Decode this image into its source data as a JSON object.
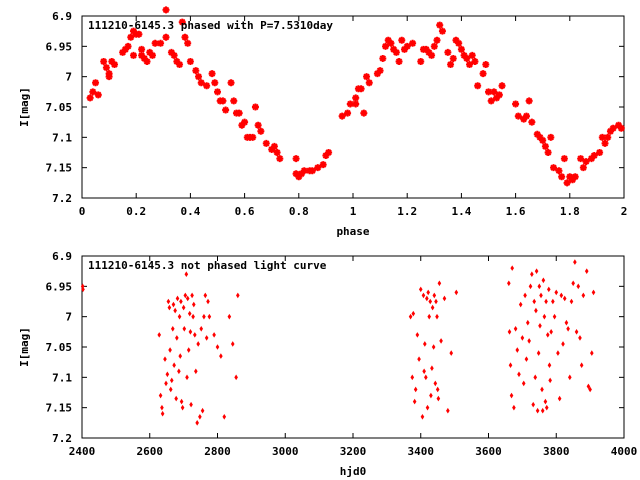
{
  "colors": {
    "marker": "#ff0000",
    "axis": "#000000",
    "background": "#ffffff"
  },
  "chart_data": [
    {
      "type": "scatter",
      "title": "111210-6145.3 phased with P=7.5310day",
      "xlabel": "phase",
      "ylabel": "I[mag]",
      "xlim": [
        0,
        2
      ],
      "ylim": [
        7.2,
        6.9
      ],
      "x_ticks": [
        "0",
        "0.2",
        "0.4",
        "0.6",
        "0.8",
        "1",
        "1.2",
        "1.4",
        "1.6",
        "1.8",
        "2"
      ],
      "y_ticks": [
        "6.9",
        "6.95",
        "7",
        "7.05",
        "7.1",
        "7.15",
        "7.2"
      ],
      "grid": false,
      "marker": "star",
      "points": [
        [
          0.03,
          7.035
        ],
        [
          0.04,
          7.025
        ],
        [
          0.05,
          7.01
        ],
        [
          0.06,
          7.03
        ],
        [
          0.08,
          6.975
        ],
        [
          0.09,
          6.985
        ],
        [
          0.1,
          6.995
        ],
        [
          0.1,
          7.0
        ],
        [
          0.11,
          6.975
        ],
        [
          0.12,
          6.98
        ],
        [
          0.15,
          6.96
        ],
        [
          0.16,
          6.955
        ],
        [
          0.17,
          6.95
        ],
        [
          0.18,
          6.935
        ],
        [
          0.19,
          6.925
        ],
        [
          0.19,
          6.965
        ],
        [
          0.2,
          6.93
        ],
        [
          0.21,
          6.93
        ],
        [
          0.22,
          6.955
        ],
        [
          0.22,
          6.965
        ],
        [
          0.23,
          6.97
        ],
        [
          0.24,
          6.975
        ],
        [
          0.25,
          6.96
        ],
        [
          0.26,
          6.965
        ],
        [
          0.27,
          6.945
        ],
        [
          0.29,
          6.945
        ],
        [
          0.31,
          6.89
        ],
        [
          0.31,
          6.935
        ],
        [
          0.33,
          6.96
        ],
        [
          0.34,
          6.965
        ],
        [
          0.35,
          6.975
        ],
        [
          0.36,
          6.98
        ],
        [
          0.37,
          6.91
        ],
        [
          0.38,
          6.935
        ],
        [
          0.39,
          6.945
        ],
        [
          0.4,
          6.975
        ],
        [
          0.42,
          6.99
        ],
        [
          0.43,
          7.0
        ],
        [
          0.44,
          7.01
        ],
        [
          0.46,
          7.015
        ],
        [
          0.48,
          6.995
        ],
        [
          0.49,
          7.01
        ],
        [
          0.5,
          7.025
        ],
        [
          0.51,
          7.04
        ],
        [
          0.52,
          7.04
        ],
        [
          0.53,
          7.055
        ],
        [
          0.55,
          7.01
        ],
        [
          0.56,
          7.04
        ],
        [
          0.57,
          7.06
        ],
        [
          0.58,
          7.06
        ],
        [
          0.59,
          7.08
        ],
        [
          0.6,
          7.075
        ],
        [
          0.61,
          7.1
        ],
        [
          0.62,
          7.1
        ],
        [
          0.63,
          7.1
        ],
        [
          0.64,
          7.05
        ],
        [
          0.65,
          7.08
        ],
        [
          0.66,
          7.09
        ],
        [
          0.68,
          7.11
        ],
        [
          0.7,
          7.12
        ],
        [
          0.71,
          7.115
        ],
        [
          0.72,
          7.125
        ],
        [
          0.73,
          7.135
        ],
        [
          0.79,
          7.135
        ],
        [
          0.79,
          7.16
        ],
        [
          0.8,
          7.165
        ],
        [
          0.81,
          7.16
        ],
        [
          0.82,
          7.155
        ],
        [
          0.84,
          7.155
        ],
        [
          0.85,
          7.155
        ],
        [
          0.87,
          7.15
        ],
        [
          0.89,
          7.145
        ],
        [
          0.9,
          7.13
        ],
        [
          0.91,
          7.125
        ],
        [
          0.96,
          7.065
        ],
        [
          0.98,
          7.06
        ],
        [
          0.99,
          7.045
        ],
        [
          1.01,
          7.035
        ],
        [
          1.01,
          7.045
        ],
        [
          1.02,
          7.02
        ],
        [
          1.03,
          7.02
        ],
        [
          1.04,
          7.06
        ],
        [
          1.05,
          7.0
        ],
        [
          1.06,
          7.01
        ],
        [
          1.09,
          6.995
        ],
        [
          1.1,
          6.99
        ],
        [
          1.11,
          6.97
        ],
        [
          1.12,
          6.95
        ],
        [
          1.13,
          6.94
        ],
        [
          1.14,
          6.945
        ],
        [
          1.15,
          6.955
        ],
        [
          1.16,
          6.96
        ],
        [
          1.17,
          6.975
        ],
        [
          1.18,
          6.94
        ],
        [
          1.19,
          6.955
        ],
        [
          1.2,
          6.95
        ],
        [
          1.22,
          6.945
        ],
        [
          1.25,
          6.975
        ],
        [
          1.26,
          6.955
        ],
        [
          1.27,
          6.955
        ],
        [
          1.28,
          6.96
        ],
        [
          1.29,
          6.965
        ],
        [
          1.3,
          6.95
        ],
        [
          1.31,
          6.94
        ],
        [
          1.32,
          6.915
        ],
        [
          1.33,
          6.925
        ],
        [
          1.35,
          6.96
        ],
        [
          1.36,
          6.98
        ],
        [
          1.37,
          6.97
        ],
        [
          1.38,
          6.94
        ],
        [
          1.39,
          6.945
        ],
        [
          1.4,
          6.955
        ],
        [
          1.41,
          6.965
        ],
        [
          1.42,
          6.97
        ],
        [
          1.43,
          6.98
        ],
        [
          1.44,
          6.965
        ],
        [
          1.45,
          6.975
        ],
        [
          1.46,
          7.015
        ],
        [
          1.48,
          6.995
        ],
        [
          1.49,
          6.98
        ],
        [
          1.5,
          7.025
        ],
        [
          1.51,
          7.04
        ],
        [
          1.52,
          7.025
        ],
        [
          1.53,
          7.035
        ],
        [
          1.54,
          7.03
        ],
        [
          1.55,
          7.015
        ],
        [
          1.6,
          7.045
        ],
        [
          1.61,
          7.065
        ],
        [
          1.63,
          7.07
        ],
        [
          1.64,
          7.065
        ],
        [
          1.65,
          7.04
        ],
        [
          1.66,
          7.075
        ],
        [
          1.68,
          7.095
        ],
        [
          1.69,
          7.1
        ],
        [
          1.7,
          7.105
        ],
        [
          1.71,
          7.115
        ],
        [
          1.72,
          7.125
        ],
        [
          1.73,
          7.1
        ],
        [
          1.74,
          7.15
        ],
        [
          1.76,
          7.155
        ],
        [
          1.77,
          7.165
        ],
        [
          1.78,
          7.135
        ],
        [
          1.79,
          7.175
        ],
        [
          1.8,
          7.165
        ],
        [
          1.81,
          7.17
        ],
        [
          1.82,
          7.165
        ],
        [
          1.84,
          7.135
        ],
        [
          1.85,
          7.15
        ],
        [
          1.86,
          7.14
        ],
        [
          1.88,
          7.135
        ],
        [
          1.89,
          7.13
        ],
        [
          1.91,
          7.125
        ],
        [
          1.92,
          7.1
        ],
        [
          1.93,
          7.11
        ],
        [
          1.94,
          7.1
        ],
        [
          1.95,
          7.09
        ],
        [
          1.96,
          7.085
        ],
        [
          1.98,
          7.08
        ],
        [
          1.99,
          7.085
        ]
      ]
    },
    {
      "type": "scatter",
      "title": "111210-6145.3 not phased light curve",
      "xlabel": "hjd0",
      "ylabel": "I[mag]",
      "xlim": [
        2400,
        4000
      ],
      "ylim": [
        7.2,
        6.9
      ],
      "x_ticks": [
        "2400",
        "2600",
        "2800",
        "3000",
        "3200",
        "3400",
        "3600",
        "3800",
        "4000"
      ],
      "y_ticks": [
        "6.9",
        "6.95",
        "7",
        "7.05",
        "7.1",
        "7.15",
        "7.2"
      ],
      "grid": false,
      "marker": "diamond",
      "points": [
        [
          2402,
          6.95
        ],
        [
          2403,
          6.955
        ],
        [
          2628,
          7.03
        ],
        [
          2632,
          7.13
        ],
        [
          2636,
          7.15
        ],
        [
          2638,
          7.16
        ],
        [
          2645,
          7.07
        ],
        [
          2648,
          7.11
        ],
        [
          2652,
          7.095
        ],
        [
          2655,
          6.975
        ],
        [
          2658,
          6.985
        ],
        [
          2660,
          7.055
        ],
        [
          2662,
          7.12
        ],
        [
          2665,
          7.105
        ],
        [
          2668,
          7.02
        ],
        [
          2670,
          6.98
        ],
        [
          2672,
          7.08
        ],
        [
          2675,
          6.99
        ],
        [
          2678,
          7.135
        ],
        [
          2680,
          7.035
        ],
        [
          2682,
          6.97
        ],
        [
          2686,
          7.09
        ],
        [
          2688,
          7.0
        ],
        [
          2690,
          7.065
        ],
        [
          2692,
          6.975
        ],
        [
          2694,
          7.14
        ],
        [
          2697,
          7.15
        ],
        [
          2700,
          6.985
        ],
        [
          2702,
          7.02
        ],
        [
          2705,
          6.965
        ],
        [
          2708,
          6.93
        ],
        [
          2710,
          7.1
        ],
        [
          2712,
          6.97
        ],
        [
          2715,
          7.055
        ],
        [
          2718,
          6.995
        ],
        [
          2720,
          7.025
        ],
        [
          2722,
          7.145
        ],
        [
          2725,
          6.965
        ],
        [
          2728,
          7.0
        ],
        [
          2730,
          6.98
        ],
        [
          2733,
          7.03
        ],
        [
          2736,
          7.09
        ],
        [
          2740,
          7.175
        ],
        [
          2743,
          7.045
        ],
        [
          2748,
          7.165
        ],
        [
          2752,
          7.02
        ],
        [
          2756,
          7.155
        ],
        [
          2760,
          7.0
        ],
        [
          2764,
          6.965
        ],
        [
          2768,
          7.035
        ],
        [
          2772,
          6.975
        ],
        [
          2776,
          7.0
        ],
        [
          2790,
          7.03
        ],
        [
          2800,
          7.05
        ],
        [
          2810,
          7.065
        ],
        [
          2820,
          7.165
        ],
        [
          2835,
          7.0
        ],
        [
          2845,
          7.045
        ],
        [
          2855,
          7.1
        ],
        [
          2860,
          6.965
        ],
        [
          3370,
          7.0
        ],
        [
          3375,
          7.1
        ],
        [
          3378,
          6.995
        ],
        [
          3382,
          7.14
        ],
        [
          3385,
          7.12
        ],
        [
          3390,
          7.03
        ],
        [
          3395,
          7.07
        ],
        [
          3400,
          6.955
        ],
        [
          3405,
          7.165
        ],
        [
          3408,
          6.965
        ],
        [
          3410,
          7.09
        ],
        [
          3412,
          7.045
        ],
        [
          3415,
          7.1
        ],
        [
          3418,
          6.97
        ],
        [
          3420,
          7.15
        ],
        [
          3422,
          6.96
        ],
        [
          3425,
          7.0
        ],
        [
          3428,
          6.975
        ],
        [
          3430,
          7.13
        ],
        [
          3433,
          7.085
        ],
        [
          3435,
          6.985
        ],
        [
          3438,
          7.05
        ],
        [
          3440,
          6.965
        ],
        [
          3443,
          7.11
        ],
        [
          3445,
          6.975
        ],
        [
          3448,
          7.0
        ],
        [
          3450,
          7.12
        ],
        [
          3452,
          7.135
        ],
        [
          3455,
          6.945
        ],
        [
          3460,
          7.04
        ],
        [
          3470,
          6.97
        ],
        [
          3480,
          7.155
        ],
        [
          3490,
          7.06
        ],
        [
          3505,
          6.96
        ],
        [
          3660,
          6.945
        ],
        [
          3662,
          7.025
        ],
        [
          3665,
          7.08
        ],
        [
          3668,
          7.13
        ],
        [
          3670,
          6.92
        ],
        [
          3675,
          7.15
        ],
        [
          3680,
          7.02
        ],
        [
          3685,
          7.055
        ],
        [
          3690,
          7.095
        ],
        [
          3695,
          6.98
        ],
        [
          3700,
          7.035
        ],
        [
          3704,
          7.11
        ],
        [
          3708,
          6.965
        ],
        [
          3712,
          7.07
        ],
        [
          3716,
          7.01
        ],
        [
          3720,
          7.04
        ],
        [
          3724,
          6.95
        ],
        [
          3728,
          6.93
        ],
        [
          3732,
          7.145
        ],
        [
          3735,
          6.975
        ],
        [
          3738,
          7.1
        ],
        [
          3740,
          6.99
        ],
        [
          3742,
          6.925
        ],
        [
          3745,
          7.155
        ],
        [
          3748,
          7.06
        ],
        [
          3750,
          6.95
        ],
        [
          3752,
          7.015
        ],
        [
          3755,
          6.965
        ],
        [
          3758,
          7.12
        ],
        [
          3760,
          7.155
        ],
        [
          3762,
          6.94
        ],
        [
          3765,
          7.0
        ],
        [
          3768,
          7.14
        ],
        [
          3770,
          6.975
        ],
        [
          3772,
          7.15
        ],
        [
          3775,
          7.03
        ],
        [
          3778,
          6.955
        ],
        [
          3780,
          7.08
        ],
        [
          3782,
          7.105
        ],
        [
          3785,
          7.025
        ],
        [
          3790,
          6.975
        ],
        [
          3795,
          7.0
        ],
        [
          3800,
          6.96
        ],
        [
          3805,
          7.06
        ],
        [
          3810,
          7.135
        ],
        [
          3815,
          6.965
        ],
        [
          3820,
          7.045
        ],
        [
          3825,
          6.97
        ],
        [
          3830,
          7.01
        ],
        [
          3835,
          7.02
        ],
        [
          3840,
          7.1
        ],
        [
          3845,
          6.975
        ],
        [
          3850,
          6.945
        ],
        [
          3855,
          6.91
        ],
        [
          3860,
          7.025
        ],
        [
          3865,
          6.95
        ],
        [
          3870,
          7.035
        ],
        [
          3875,
          7.08
        ],
        [
          3880,
          6.965
        ],
        [
          3890,
          6.925
        ],
        [
          3895,
          7.115
        ],
        [
          3900,
          7.12
        ],
        [
          3905,
          7.06
        ],
        [
          3910,
          6.96
        ]
      ]
    }
  ]
}
